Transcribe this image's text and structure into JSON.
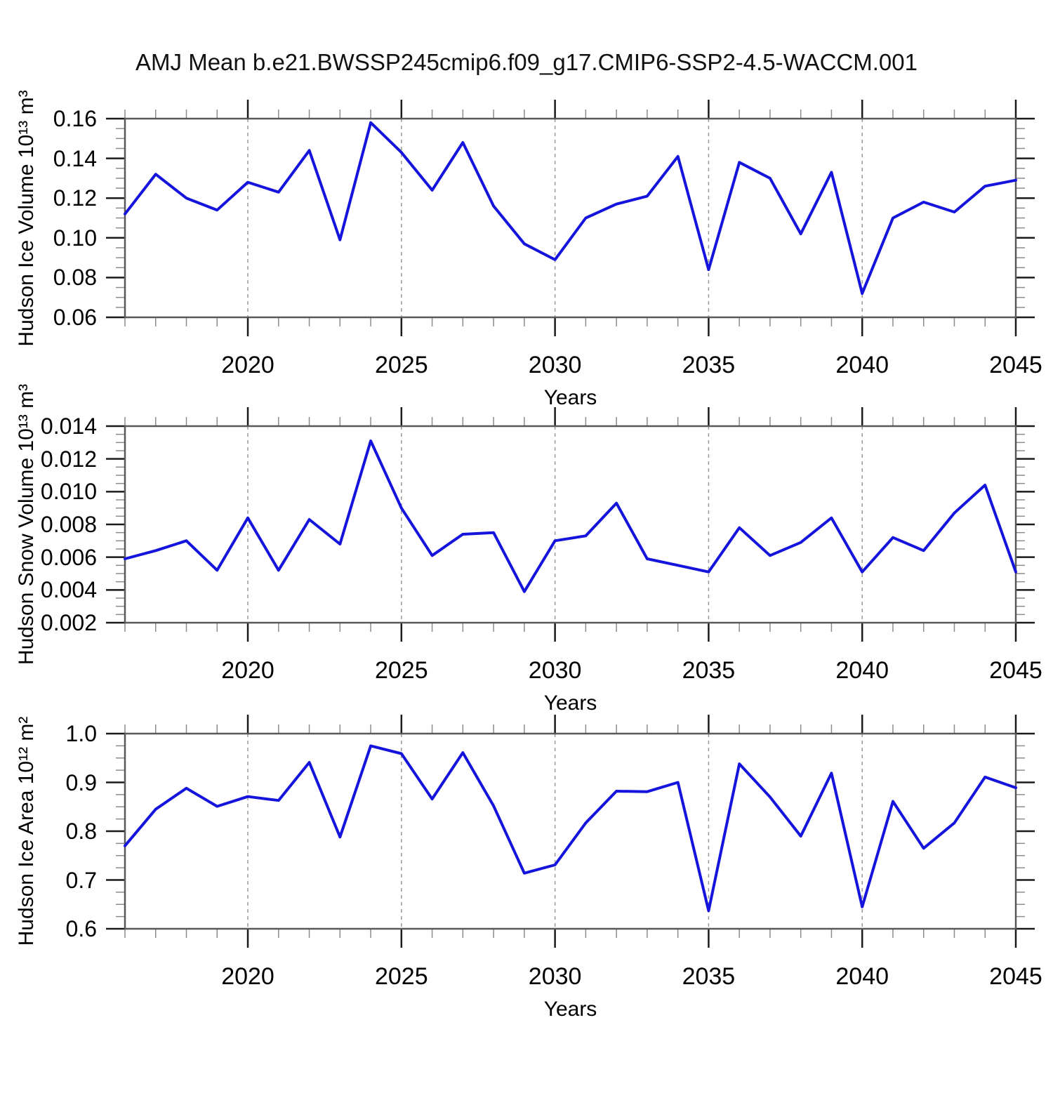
{
  "title": "AMJ Mean b.e21.BWSSP245cmip6.f09_g17.CMIP6-SSP2-4.5-WACCM.001",
  "colors": {
    "line": "#1414dc",
    "frame": "#595959",
    "major_tick": "#1a1a1a",
    "minor_tick": "#8c8c8c",
    "grid": "#999999",
    "text": "#000000"
  },
  "x_axis": {
    "label": "Years",
    "start": 2016,
    "end": 2045,
    "major_tick_years": [
      2020,
      2025,
      2030,
      2035,
      2040,
      2045
    ],
    "grid_years": [
      2020,
      2025,
      2030,
      2035,
      2040
    ],
    "minor_tick_step": 1
  },
  "chart_data": [
    {
      "type": "line",
      "name": "hudson-ice-volume",
      "ylabel": "Hudson Ice Volume 10¹³ m³",
      "xlabel": "Years",
      "ylim": [
        0.06,
        0.16
      ],
      "ytick_values": [
        0.16,
        0.14,
        0.12,
        0.1,
        0.08,
        0.06
      ],
      "ytick_labels": [
        "0.16",
        "0.14",
        "0.12",
        "0.10",
        "0.08",
        "0.06"
      ],
      "minor_tick_step": 0.005,
      "grid": "x-dashed",
      "x": [
        2016,
        2017,
        2018,
        2019,
        2020,
        2021,
        2022,
        2023,
        2024,
        2025,
        2026,
        2027,
        2028,
        2029,
        2030,
        2031,
        2032,
        2033,
        2034,
        2035,
        2036,
        2037,
        2038,
        2039,
        2040,
        2041,
        2042,
        2043,
        2044,
        2045
      ],
      "values": [
        0.112,
        0.132,
        0.12,
        0.114,
        0.128,
        0.123,
        0.144,
        0.099,
        0.158,
        0.143,
        0.124,
        0.148,
        0.116,
        0.097,
        0.089,
        0.11,
        0.117,
        0.121,
        0.141,
        0.084,
        0.138,
        0.13,
        0.102,
        0.133,
        0.072,
        0.11,
        0.118,
        0.113,
        0.126,
        0.129
      ]
    },
    {
      "type": "line",
      "name": "hudson-snow-volume",
      "ylabel": "Hudson Snow Volume 10¹³ m³",
      "xlabel": "Years",
      "ylim": [
        0.002,
        0.014
      ],
      "ytick_values": [
        0.014,
        0.012,
        0.01,
        0.008,
        0.006,
        0.004,
        0.002
      ],
      "ytick_labels": [
        "0.014",
        "0.012",
        "0.010",
        "0.008",
        "0.006",
        "0.004",
        "0.002"
      ],
      "minor_tick_step": 0.0005,
      "grid": "x-dashed",
      "x": [
        2016,
        2017,
        2018,
        2019,
        2020,
        2021,
        2022,
        2023,
        2024,
        2025,
        2026,
        2027,
        2028,
        2029,
        2030,
        2031,
        2032,
        2033,
        2034,
        2035,
        2036,
        2037,
        2038,
        2039,
        2040,
        2041,
        2042,
        2043,
        2044,
        2045
      ],
      "values": [
        0.0059,
        0.0064,
        0.007,
        0.0052,
        0.0084,
        0.0052,
        0.0083,
        0.0068,
        0.0131,
        0.009,
        0.0061,
        0.0074,
        0.0075,
        0.0039,
        0.007,
        0.0073,
        0.0093,
        0.0059,
        0.0055,
        0.0051,
        0.0078,
        0.0061,
        0.0069,
        0.0084,
        0.0051,
        0.0072,
        0.0064,
        0.0087,
        0.0104,
        0.0051
      ]
    },
    {
      "type": "line",
      "name": "hudson-ice-area",
      "ylabel": "Hudson Ice Area 10¹² m²",
      "xlabel": "Years",
      "ylim": [
        0.6,
        1.0
      ],
      "ytick_values": [
        1.0,
        0.9,
        0.8,
        0.7,
        0.6
      ],
      "ytick_labels": [
        "1.0",
        "0.9",
        "0.8",
        "0.7",
        "0.6"
      ],
      "minor_tick_step": 0.025,
      "grid": "x-dashed",
      "x": [
        2016,
        2017,
        2018,
        2019,
        2020,
        2021,
        2022,
        2023,
        2024,
        2025,
        2026,
        2027,
        2028,
        2029,
        2030,
        2031,
        2032,
        2033,
        2034,
        2035,
        2036,
        2037,
        2038,
        2039,
        2040,
        2041,
        2042,
        2043,
        2044,
        2045
      ],
      "values": [
        0.77,
        0.845,
        0.888,
        0.851,
        0.871,
        0.863,
        0.941,
        0.788,
        0.975,
        0.959,
        0.866,
        0.961,
        0.852,
        0.714,
        0.731,
        0.817,
        0.882,
        0.881,
        0.9,
        0.637,
        0.938,
        0.87,
        0.79,
        0.919,
        0.645,
        0.861,
        0.765,
        0.817,
        0.911,
        0.889
      ]
    }
  ]
}
